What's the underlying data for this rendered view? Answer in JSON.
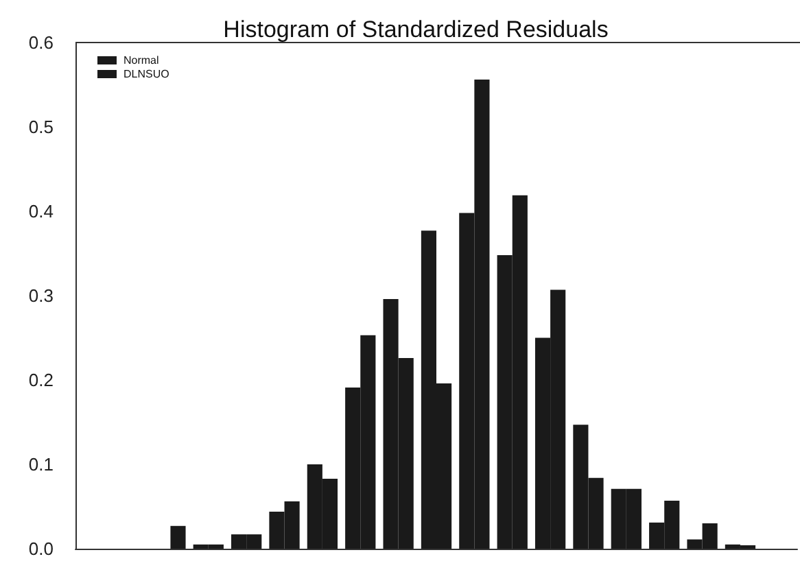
{
  "chart_data": {
    "type": "bar",
    "title": "Histogram of Standardized Residuals",
    "categories": [
      null,
      null,
      null,
      null,
      null,
      null,
      null,
      null,
      null,
      null,
      null,
      null,
      null,
      null,
      null,
      null,
      null,
      null,
      null
    ],
    "series": [
      {
        "name": "Normal",
        "color": "#1a1a1a",
        "values": [
          0,
          0,
          0,
          0.005,
          0.017,
          0.044,
          0.1,
          0.191,
          0.296,
          0.377,
          0.398,
          0.348,
          0.25,
          0.147,
          0.071,
          0.031,
          0.011,
          0.005,
          0
        ]
      },
      {
        "name": "DLNSUO",
        "color": "#1a1a1a",
        "values": [
          0,
          0,
          0.027,
          0.005,
          0.017,
          0.056,
          0.083,
          0.253,
          0.226,
          0.196,
          0.556,
          0.419,
          0.307,
          0.084,
          0.071,
          0.057,
          0.03,
          0.004,
          0
        ]
      }
    ],
    "ylim": [
      0,
      0.6
    ],
    "yticks": [
      {
        "value": 0,
        "label": "0.0"
      },
      0.1,
      0.2,
      0.3,
      0.4,
      0.5,
      0.6
    ],
    "grid": false,
    "legend": "top left",
    "tick_labels": "y"
  }
}
